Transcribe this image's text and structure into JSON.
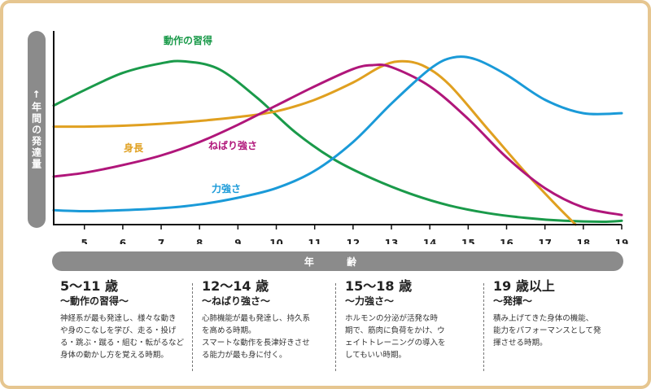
{
  "chart_data": {
    "type": "line",
    "xlabel": "年 齢",
    "ylabel": "↑年間の発達量",
    "x_ticks": [
      5,
      6,
      7,
      8,
      9,
      10,
      11,
      12,
      13,
      14,
      15,
      16,
      17,
      18,
      19
    ],
    "xlim": [
      4.2,
      19
    ],
    "ylim": [
      0,
      10
    ],
    "series": [
      {
        "name": "動作の習得",
        "color": "#1a9a4a",
        "points": [
          [
            4.2,
            6.2
          ],
          [
            5,
            7.0
          ],
          [
            6,
            7.9
          ],
          [
            7,
            8.4
          ],
          [
            7.6,
            8.5
          ],
          [
            8.5,
            8.1
          ],
          [
            9.5,
            6.6
          ],
          [
            10.5,
            4.8
          ],
          [
            11.5,
            3.4
          ],
          [
            12.5,
            2.4
          ],
          [
            13.5,
            1.6
          ],
          [
            14.5,
            1.0
          ],
          [
            15.5,
            0.6
          ],
          [
            16.5,
            0.35
          ],
          [
            17.5,
            0.2
          ],
          [
            18.5,
            0.15
          ],
          [
            19,
            0.2
          ]
        ]
      },
      {
        "name": "身長",
        "color": "#e0a020",
        "points": [
          [
            4.2,
            5.1
          ],
          [
            5,
            5.1
          ],
          [
            6,
            5.15
          ],
          [
            7,
            5.25
          ],
          [
            8,
            5.4
          ],
          [
            9,
            5.6
          ],
          [
            10,
            5.9
          ],
          [
            11,
            6.5
          ],
          [
            12,
            7.4
          ],
          [
            12.7,
            8.2
          ],
          [
            13.2,
            8.5
          ],
          [
            13.8,
            8.3
          ],
          [
            14.5,
            7.3
          ],
          [
            15.5,
            5.0
          ],
          [
            16.5,
            2.7
          ],
          [
            17.3,
            1.0
          ],
          [
            17.8,
            0
          ]
        ]
      },
      {
        "name": "ねばり強さ",
        "color": "#b0167a",
        "points": [
          [
            4.2,
            2.5
          ],
          [
            5,
            2.7
          ],
          [
            6,
            3.1
          ],
          [
            7,
            3.6
          ],
          [
            8,
            4.3
          ],
          [
            9,
            5.2
          ],
          [
            10,
            6.2
          ],
          [
            11,
            7.2
          ],
          [
            12,
            8.1
          ],
          [
            12.5,
            8.3
          ],
          [
            13,
            8.2
          ],
          [
            14,
            7.2
          ],
          [
            15,
            5.5
          ],
          [
            16,
            3.5
          ],
          [
            17,
            1.9
          ],
          [
            18,
            0.9
          ],
          [
            19,
            0.5
          ]
        ]
      },
      {
        "name": "力強さ",
        "color": "#1a9ad8",
        "points": [
          [
            4.2,
            0.75
          ],
          [
            5,
            0.7
          ],
          [
            6,
            0.75
          ],
          [
            7,
            0.85
          ],
          [
            8,
            1.05
          ],
          [
            9,
            1.4
          ],
          [
            10,
            1.9
          ],
          [
            11,
            2.8
          ],
          [
            12,
            4.3
          ],
          [
            13,
            6.3
          ],
          [
            14,
            8.1
          ],
          [
            14.6,
            8.7
          ],
          [
            15.2,
            8.6
          ],
          [
            16,
            7.8
          ],
          [
            17,
            6.5
          ],
          [
            18,
            5.8
          ],
          [
            19,
            5.8
          ]
        ]
      }
    ]
  },
  "stages": [
    {
      "age": "5～11 歳",
      "sub": "～動作の習得～",
      "desc": "神経系が最も発達し、様々な動き\nや身のこなしを学び、走る・投げ\nる・跳ぶ・蹴る・組む・転がるなど\n身体の動かし方を覚える時期。"
    },
    {
      "age": "12～14 歳",
      "sub": "～ねばり強さ～",
      "desc": "心肺機能が最も発達し、持久系\nを高める時期。\nスマートな動作を長津好きさせ\nる能力が最も身に付く。"
    },
    {
      "age": "15～18 歳",
      "sub": "～力強さ～",
      "desc": "ホルモンの分泌が活発な時\n期で、筋肉に負荷をかけ、ウ\nェイトトレーニングの導入を\nしてもいい時期。"
    },
    {
      "age": "19 歳以上",
      "sub": "～発揮～",
      "desc": "積み上げてきた身体の機能、\n能力をパフォーマンスとして発\n揮させる時期。"
    }
  ]
}
